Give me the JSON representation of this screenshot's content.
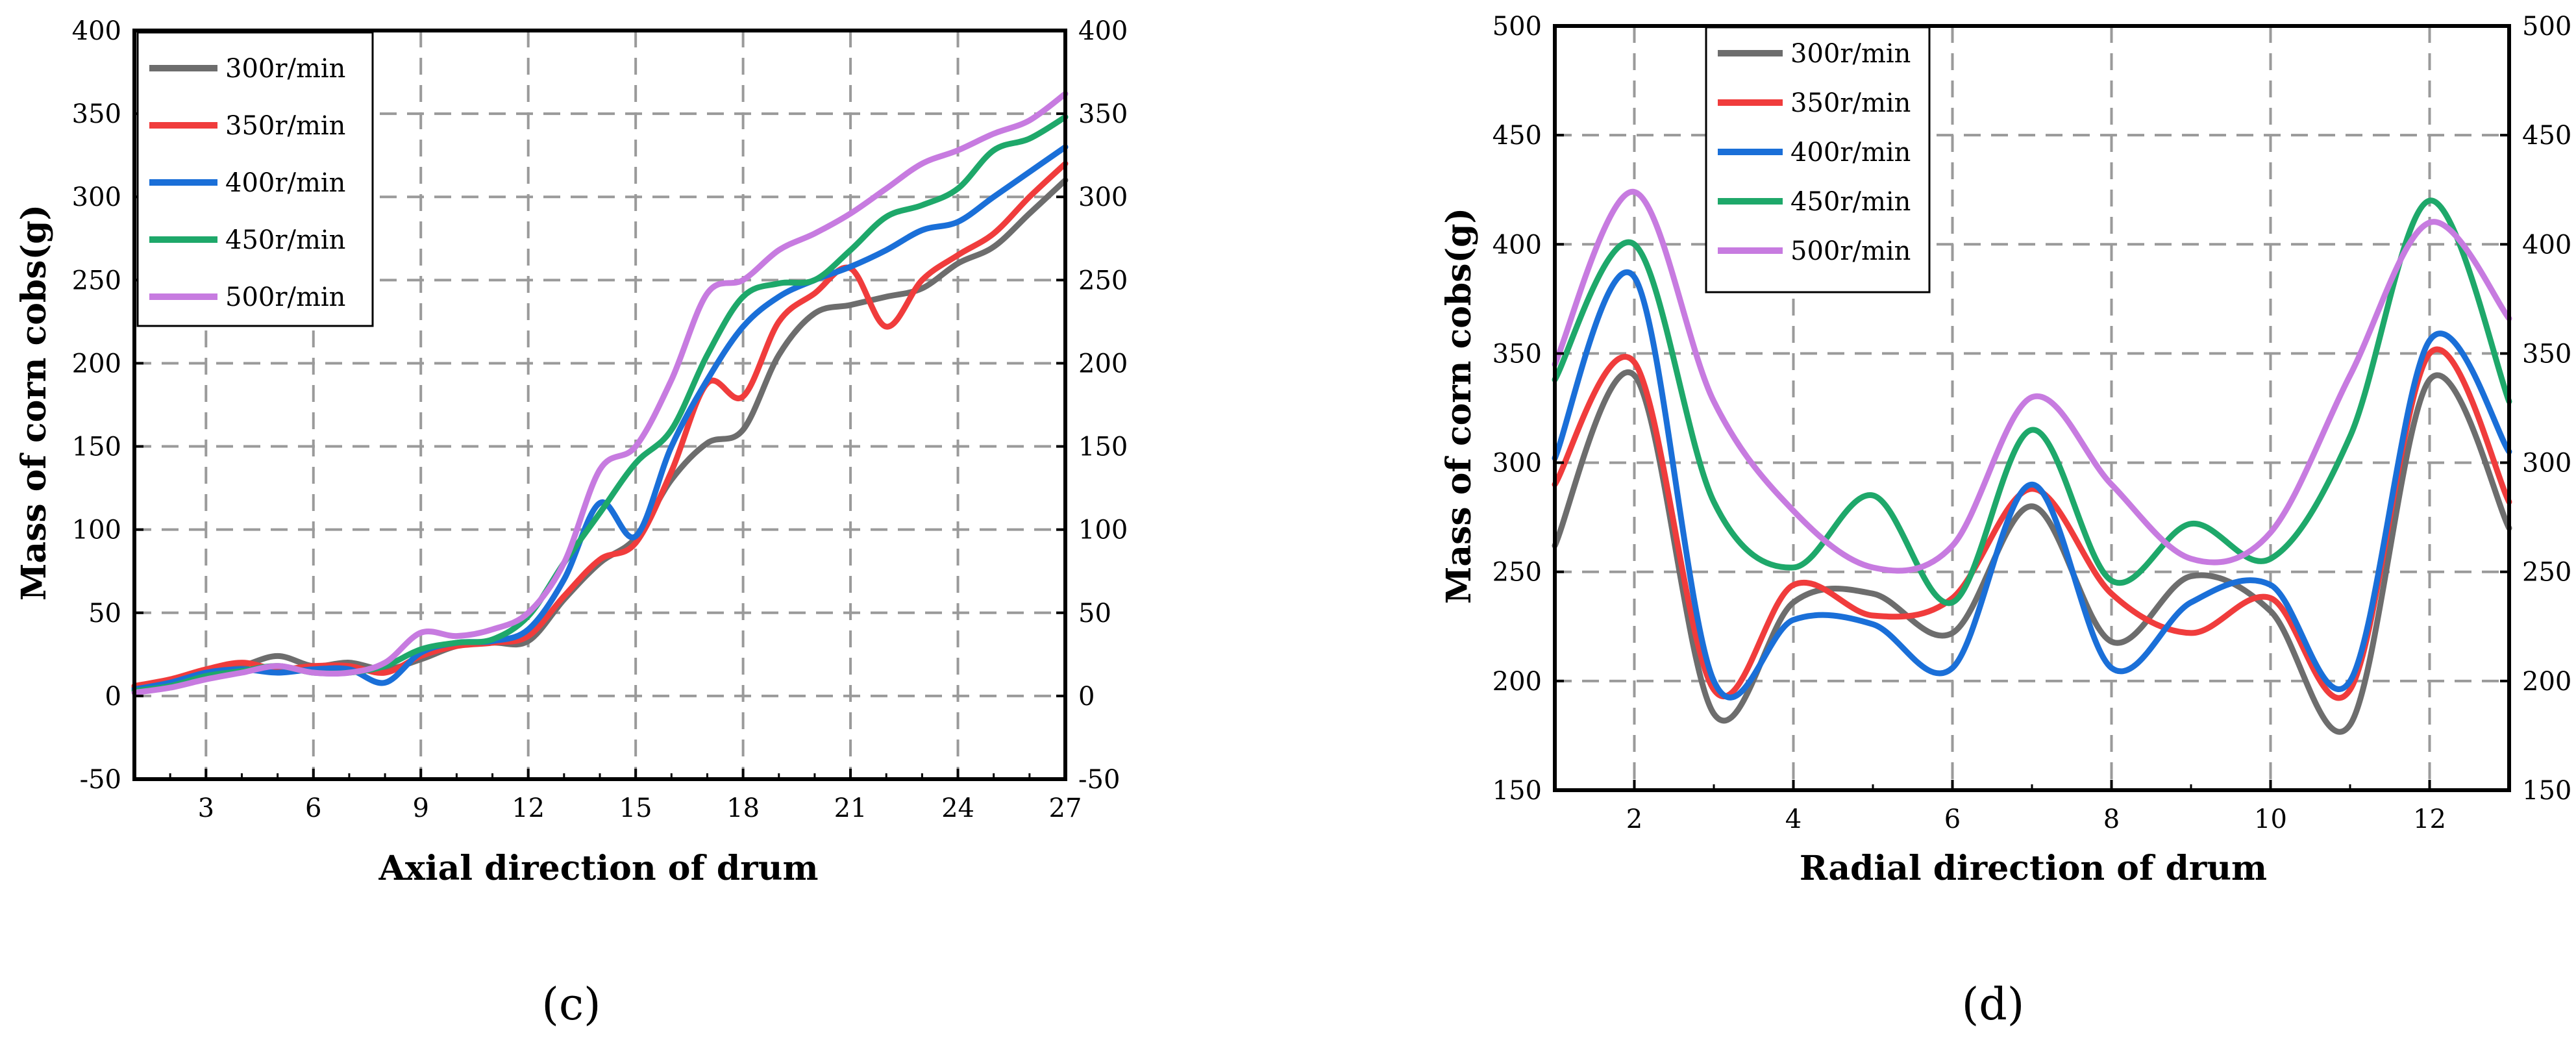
{
  "chart_data": [
    {
      "type": "line",
      "panel_label": "(c)",
      "xlabel": "Axial direction of drum",
      "ylabel": "Mass of corn cobs(g)",
      "xlim": [
        1,
        27
      ],
      "ylim": [
        -50,
        400
      ],
      "xticks": [
        3,
        6,
        9,
        12,
        15,
        18,
        21,
        24,
        27
      ],
      "yticks": [
        -50,
        0,
        50,
        100,
        150,
        200,
        250,
        300,
        350,
        400
      ],
      "legend_position": "top-left",
      "grid": true,
      "x": [
        1,
        2,
        3,
        4,
        5,
        6,
        7,
        8,
        9,
        10,
        11,
        12,
        13,
        14,
        15,
        16,
        17,
        18,
        19,
        20,
        21,
        22,
        23,
        24,
        25,
        26,
        27
      ],
      "series": [
        {
          "name": "300r/min",
          "color": "#6d6d6d",
          "values": [
            5,
            8,
            14,
            18,
            24,
            18,
            20,
            16,
            22,
            30,
            32,
            33,
            58,
            80,
            95,
            130,
            152,
            160,
            205,
            230,
            235,
            240,
            245,
            260,
            270,
            290,
            310
          ]
        },
        {
          "name": "350r/min",
          "color": "#f03c3c",
          "values": [
            6,
            10,
            16,
            20,
            16,
            18,
            18,
            14,
            24,
            30,
            32,
            36,
            60,
            82,
            92,
            135,
            188,
            180,
            225,
            242,
            257,
            222,
            250,
            265,
            278,
            300,
            320
          ]
        },
        {
          "name": "400r/min",
          "color": "#1a6fd8",
          "values": [
            4,
            8,
            14,
            16,
            14,
            16,
            16,
            8,
            26,
            32,
            33,
            40,
            70,
            116,
            96,
            150,
            190,
            222,
            240,
            250,
            258,
            268,
            280,
            285,
            300,
            315,
            330
          ]
        },
        {
          "name": "450r/min",
          "color": "#1ea86a",
          "values": [
            3,
            6,
            12,
            15,
            18,
            14,
            14,
            18,
            28,
            32,
            34,
            48,
            80,
            110,
            140,
            160,
            205,
            240,
            248,
            250,
            268,
            288,
            295,
            305,
            328,
            335,
            348
          ]
        },
        {
          "name": "500r/min",
          "color": "#c77be0",
          "values": [
            2,
            5,
            10,
            14,
            18,
            14,
            14,
            20,
            38,
            36,
            40,
            50,
            80,
            136,
            150,
            190,
            242,
            250,
            268,
            278,
            290,
            305,
            320,
            328,
            338,
            346,
            362
          ]
        }
      ]
    },
    {
      "type": "line",
      "panel_label": "(d)",
      "xlabel": "Radial direction of drum",
      "ylabel": "Mass of corn cobs(g)",
      "xlim": [
        1,
        13
      ],
      "ylim": [
        150,
        500
      ],
      "xticks": [
        2,
        4,
        6,
        8,
        10,
        12
      ],
      "yticks": [
        150,
        200,
        250,
        300,
        350,
        400,
        450,
        500
      ],
      "legend_position": "top-left",
      "grid": true,
      "x": [
        1,
        2,
        3,
        4,
        5,
        6,
        7,
        8,
        9,
        10,
        11,
        12,
        13
      ],
      "series": [
        {
          "name": "300r/min",
          "color": "#6d6d6d",
          "values": [
            262,
            340,
            185,
            236,
            240,
            222,
            280,
            218,
            248,
            232,
            180,
            338,
            270
          ]
        },
        {
          "name": "350r/min",
          "color": "#f03c3c",
          "values": [
            290,
            346,
            196,
            244,
            230,
            238,
            288,
            240,
            222,
            238,
            196,
            350,
            282
          ]
        },
        {
          "name": "400r/min",
          "color": "#1a6fd8",
          "values": [
            302,
            385,
            200,
            228,
            226,
            206,
            290,
            206,
            236,
            244,
            200,
            356,
            305
          ]
        },
        {
          "name": "450r/min",
          "color": "#1ea86a",
          "values": [
            338,
            400,
            282,
            252,
            285,
            236,
            315,
            246,
            272,
            256,
            312,
            420,
            328
          ]
        },
        {
          "name": "500r/min",
          "color": "#c77be0",
          "values": [
            345,
            424,
            328,
            278,
            252,
            262,
            330,
            290,
            256,
            268,
            340,
            410,
            366
          ]
        }
      ]
    }
  ]
}
